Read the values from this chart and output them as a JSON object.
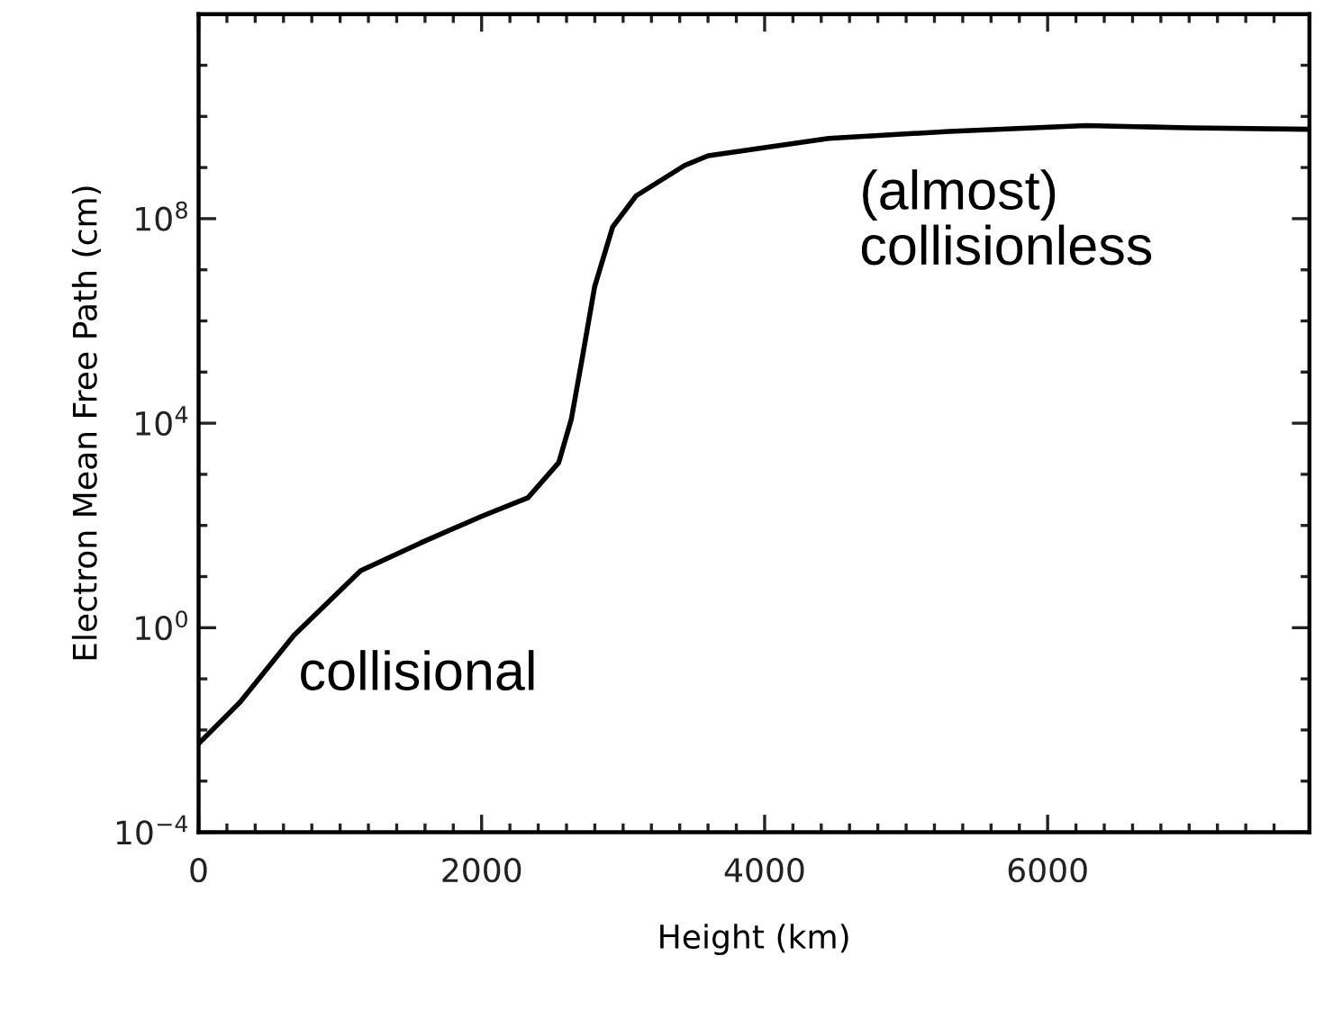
{
  "chart_data": {
    "type": "line",
    "xlabel": "Height (km)",
    "ylabel": "Electron Mean Free Path (cm)",
    "log": "y",
    "grid": false,
    "legend": false,
    "marker": "none",
    "line_style": "solid",
    "xlim": [
      0,
      7850
    ],
    "ylim": [
      0.0001,
      1000000000000.0
    ],
    "xticks": [
      0,
      {
        "value": 200,
        "label": null
      },
      {
        "value": 400,
        "label": null
      },
      {
        "value": 600,
        "label": null
      },
      {
        "value": 800,
        "label": null
      },
      {
        "value": 1000,
        "label": null
      },
      {
        "value": 1200,
        "label": null
      },
      {
        "value": 1400,
        "label": null
      },
      {
        "value": 1600,
        "label": null
      },
      {
        "value": 1800,
        "label": null
      },
      2000,
      {
        "value": 2200,
        "label": null
      },
      {
        "value": 2400,
        "label": null
      },
      {
        "value": 2600,
        "label": null
      },
      {
        "value": 2800,
        "label": null
      },
      {
        "value": 3000,
        "label": null
      },
      {
        "value": 3200,
        "label": null
      },
      {
        "value": 3400,
        "label": null
      },
      {
        "value": 3600,
        "label": null
      },
      {
        "value": 3800,
        "label": null
      },
      4000,
      {
        "value": 4200,
        "label": null
      },
      {
        "value": 4400,
        "label": null
      },
      {
        "value": 4600,
        "label": null
      },
      {
        "value": 4800,
        "label": null
      },
      {
        "value": 5000,
        "label": null
      },
      {
        "value": 5200,
        "label": null
      },
      {
        "value": 5400,
        "label": null
      },
      {
        "value": 5600,
        "label": null
      },
      {
        "value": 5800,
        "label": null
      },
      6000,
      {
        "value": 6200,
        "label": null
      },
      {
        "value": 6400,
        "label": null
      },
      {
        "value": 6600,
        "label": null
      },
      {
        "value": 6800,
        "label": null
      },
      {
        "value": 7000,
        "label": null
      },
      {
        "value": 7200,
        "label": null
      },
      {
        "value": 7400,
        "label": null
      },
      {
        "value": 7600,
        "label": null
      }
    ],
    "yticks": [
      {
        "value": 0.0001,
        "label": "10$^{−4}$"
      },
      {
        "value": 0.001,
        "label": null
      },
      {
        "value": 0.01,
        "label": null
      },
      {
        "value": 0.1,
        "label": null
      },
      {
        "value": 1,
        "label": "10$^{0}$"
      },
      {
        "value": 10.0,
        "label": null
      },
      {
        "value": 100.0,
        "label": null
      },
      {
        "value": 1000.0,
        "label": null
      },
      {
        "value": 10000.0,
        "label": "10$^{4}$"
      },
      {
        "value": 100000.0,
        "label": null
      },
      {
        "value": 1000000.0,
        "label": null
      },
      {
        "value": 10000000.0,
        "label": null
      },
      {
        "value": 100000000.0,
        "label": "10$^{8}$"
      },
      {
        "value": 1000000000.0,
        "label": null
      },
      {
        "value": 10000000000.0,
        "label": null
      },
      {
        "value": 100000000000.0,
        "label": null
      },
      {
        "value": 1000000000000.0,
        "label": null
      }
    ],
    "series": [
      {
        "color": "#000000",
        "x": [
          0,
          293,
          674,
          1145,
          1565,
          1997,
          2328,
          2545,
          2634,
          2710,
          2799,
          2926,
          3092,
          3435,
          3601,
          4453,
          5305,
          6272,
          6997,
          7850
        ],
        "values": [
          0.0054,
          0.035,
          0.71,
          13,
          45,
          150,
          350,
          1700.0,
          12000.0,
          180000.0,
          4700000.0,
          69000000.0,
          280000000.0,
          1100000000.0,
          1700000000.0,
          3700000000.0,
          5100000000.0,
          6600000000.0,
          6000000000.0,
          5600000000.0
        ]
      }
    ],
    "annotations": [
      "collisional",
      "(almost)\ncollisionless"
    ]
  }
}
